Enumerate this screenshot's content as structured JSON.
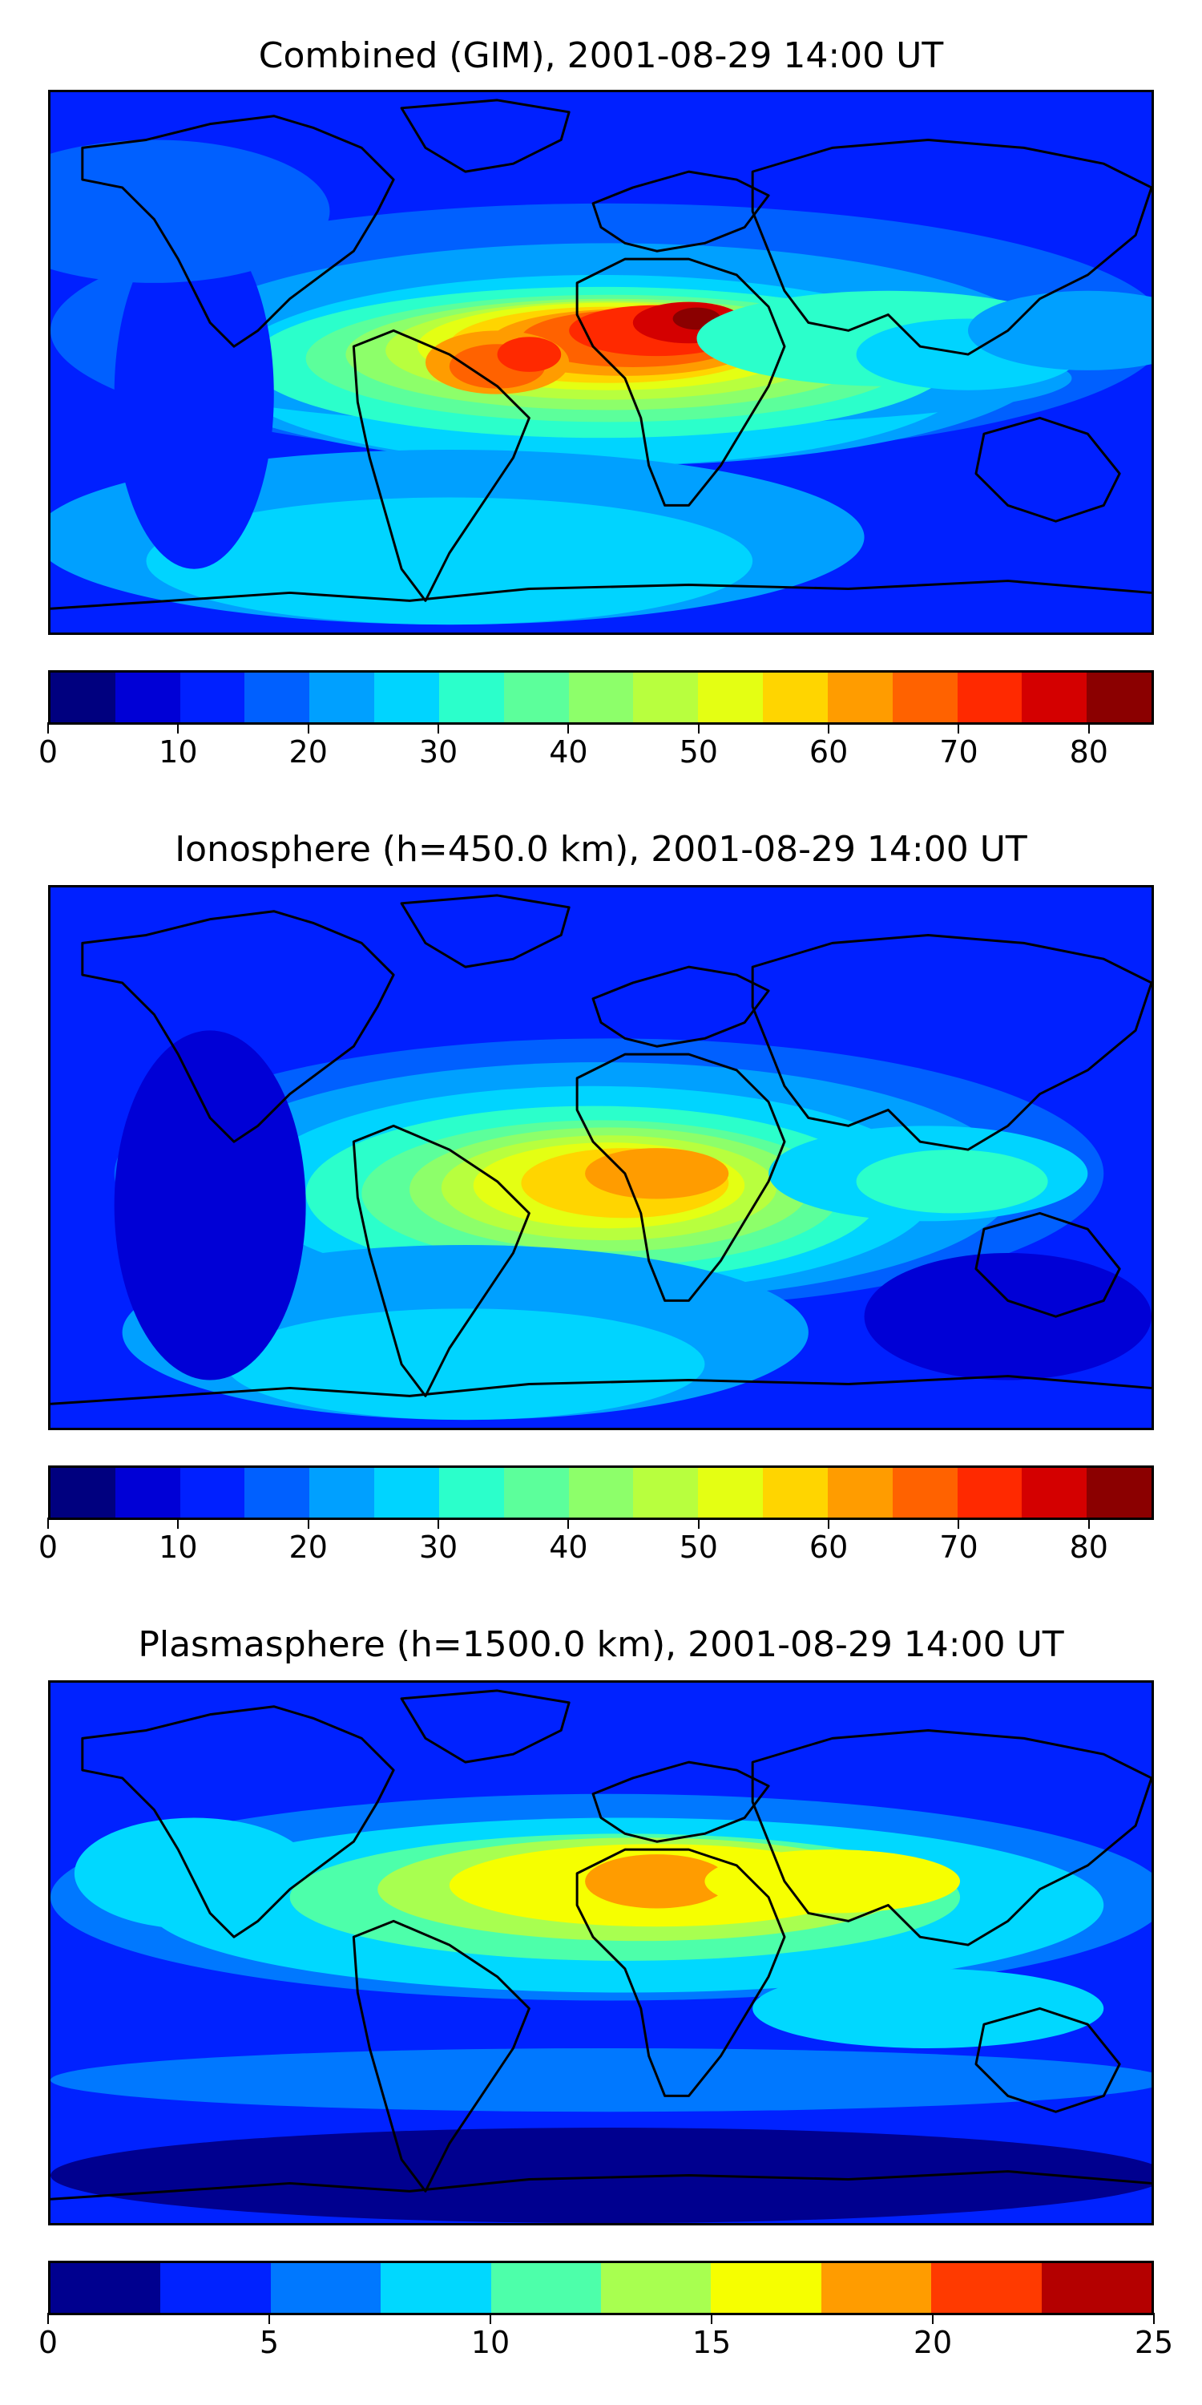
{
  "palette_jet": [
    "#00007f",
    "#0000d6",
    "#0020ff",
    "#0060ff",
    "#00a0ff",
    "#00d4ff",
    "#2bffcb",
    "#5cff9b",
    "#8dff6a",
    "#b8ff3e",
    "#e4ff13",
    "#ffd500",
    "#ff9c00",
    "#ff6200",
    "#ff2900",
    "#d40000",
    "#8b0000"
  ],
  "palette_plasma": [
    "#00008f",
    "#0022ff",
    "#0078ff",
    "#00d8ff",
    "#4dffaa",
    "#a8ff50",
    "#f6ff00",
    "#ff9c00",
    "#ff3a00",
    "#b40000"
  ],
  "coast_color": "#000000",
  "panels": [
    {
      "title": "Combined (GIM), 2001-08-29 14:00 UT",
      "colorbar": {
        "ticks": [
          "0",
          "10",
          "20",
          "30",
          "40",
          "50",
          "60",
          "70",
          "80"
        ],
        "min": 0,
        "max": 85,
        "step": 5
      }
    },
    {
      "title": "Ionosphere  (h=450.0 km), 2001-08-29 14:00 UT",
      "colorbar": {
        "ticks": [
          "0",
          "10",
          "20",
          "30",
          "40",
          "50",
          "60",
          "70",
          "80"
        ],
        "min": 0,
        "max": 85,
        "step": 5
      }
    },
    {
      "title": "Plasmasphere (h=1500.0 km), 2001-08-29 14:00 UT",
      "colorbar": {
        "ticks": [
          "0",
          "5",
          "10",
          "15",
          "20",
          "25"
        ],
        "min": 0,
        "max": 25,
        "step": 2.5
      }
    }
  ]
}
